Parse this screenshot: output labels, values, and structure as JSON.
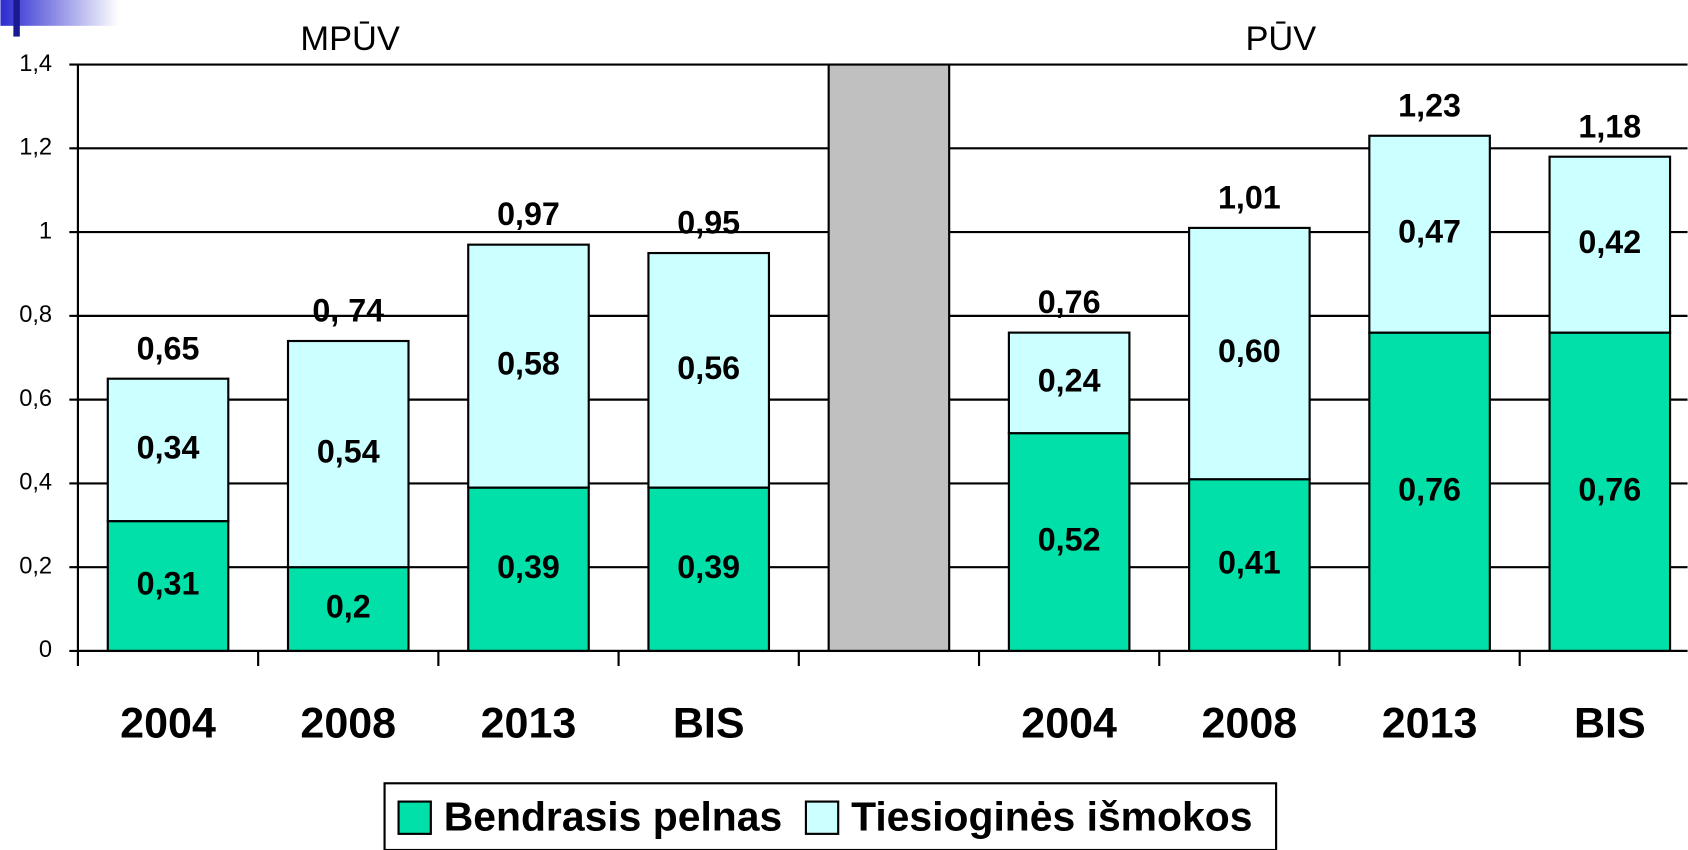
{
  "chart_data": {
    "type": "stacked_bar",
    "group_labels": [
      "MPŪV",
      "PŪV"
    ],
    "categories": [
      "2004",
      "2008",
      "2013",
      "BIS",
      null,
      "2004",
      "2008",
      "2013",
      "BIS"
    ],
    "series": [
      {
        "name": "Bendrasis pelnas",
        "color": "#00e0a8",
        "values": [
          0.31,
          0.2,
          0.39,
          0.39,
          null,
          0.52,
          0.41,
          0.76,
          0.76
        ],
        "value_labels": [
          "0,31",
          "0,2",
          "0,39",
          "0,39",
          null,
          "0,52",
          "0,41",
          "0,76",
          "0,76"
        ]
      },
      {
        "name": "Tiesioginės išmokos",
        "color": "#ccffff",
        "values": [
          0.34,
          0.54,
          0.58,
          0.56,
          null,
          0.24,
          0.6,
          0.47,
          0.42
        ],
        "value_labels": [
          "0,34",
          "0,54",
          "0,58",
          "0,56",
          null,
          "0,24",
          "0,60",
          "0,47",
          "0,42"
        ]
      },
      {
        "color": "#c0c0c0",
        "values": [
          null,
          null,
          null,
          null,
          1.4,
          null,
          null,
          null,
          null
        ]
      }
    ],
    "totals": {
      "values": [
        0.65,
        0.74,
        0.97,
        0.95,
        null,
        0.76,
        1.01,
        1.23,
        1.18
      ],
      "value_labels": [
        "0,65",
        "0, 74",
        "0,97",
        "0,95",
        null,
        "0,76",
        "1,01",
        "1,23",
        "1,18"
      ]
    },
    "ylim": [
      0,
      1.4
    ],
    "yticks": [
      0,
      {
        "value": 0.2,
        "label": "0,2"
      },
      {
        "value": 0.4,
        "label": "0,4"
      },
      {
        "value": 0.6,
        "label": "0,6"
      },
      {
        "value": 0.8,
        "label": "0,8"
      },
      1,
      {
        "value": 1.2,
        "label": "1,2"
      },
      {
        "value": 1.4,
        "label": "1,4"
      }
    ],
    "grid": true
  }
}
